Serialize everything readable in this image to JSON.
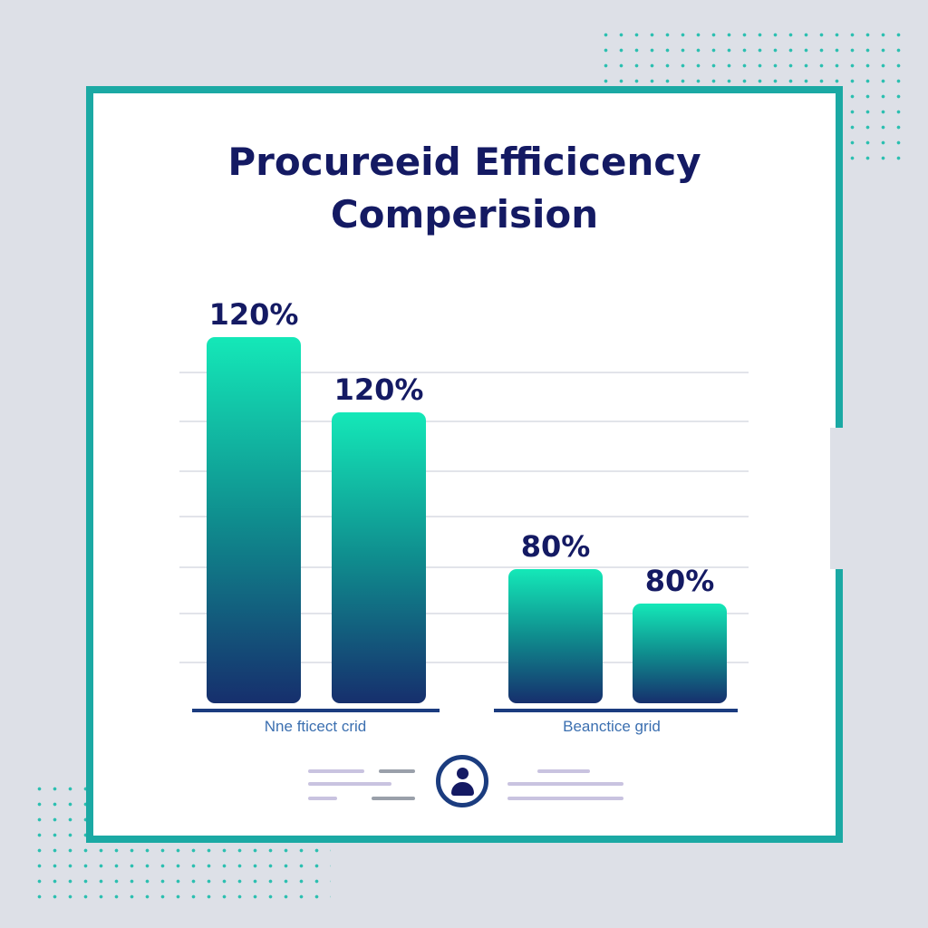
{
  "chart_data": {
    "type": "bar",
    "title": "Procureeid Efficicency Comperision",
    "groups": [
      {
        "label": "Nne fticect crid",
        "bars": [
          {
            "value": 120,
            "value_label": "120%"
          },
          {
            "value": 120,
            "value_label": "120%"
          }
        ]
      },
      {
        "label": "Beanctice grid",
        "bars": [
          {
            "value": 80,
            "value_label": "80%"
          },
          {
            "value": 80,
            "value_label": "80%"
          }
        ]
      }
    ],
    "grid": true,
    "colors": {
      "bar_top": "#14e8b8",
      "bar_mid": "#0f8d8e",
      "bar_bottom": "#162f6d",
      "text": "#141a63",
      "baseline": "#1b3c7f",
      "group_label": "#3b6fb0",
      "grid": "#e2e4ea",
      "frame": "#1ba9a4"
    }
  },
  "footer": {
    "avatar_icon": "user-icon"
  }
}
